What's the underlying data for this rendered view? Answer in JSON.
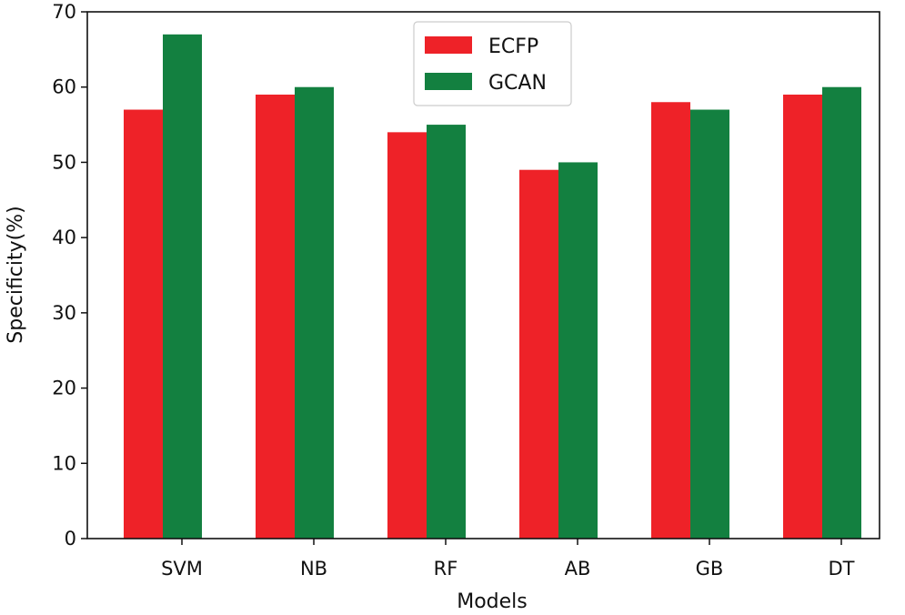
{
  "chart_data": {
    "type": "bar",
    "title": "",
    "xlabel": "Models",
    "ylabel": "Specificity(%)",
    "categories": [
      "SVM",
      "NB",
      "RF",
      "AB",
      "GB",
      "DT"
    ],
    "series": [
      {
        "name": "ECFP",
        "color": "#ee2228",
        "values": [
          57,
          59,
          54,
          49,
          58,
          59
        ]
      },
      {
        "name": "GCAN",
        "color": "#138040",
        "values": [
          67,
          60,
          55,
          50,
          57,
          60
        ]
      }
    ],
    "ylim": [
      0,
      70
    ],
    "yticks": [
      0,
      10,
      20,
      30,
      40,
      50,
      60,
      70
    ],
    "grid": false,
    "legend_position": "top-center"
  }
}
